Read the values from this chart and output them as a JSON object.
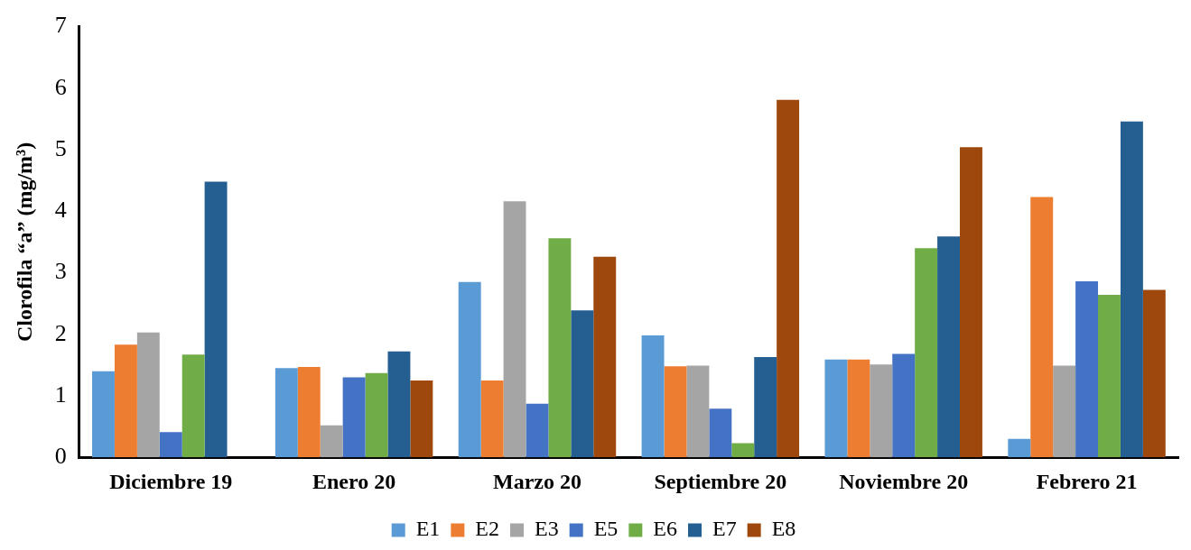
{
  "chart_data": {
    "type": "bar",
    "ylabel": "Clorofila “a” (mg/m³)",
    "categories": [
      "Diciembre 19",
      "Enero 20",
      "Marzo 20",
      "Septiembre 20",
      "Noviembre 20",
      "Febrero 21"
    ],
    "series": [
      {
        "name": "E1",
        "color": "#5b9bd5",
        "values": [
          1.4,
          1.45,
          2.85,
          1.98,
          1.59,
          0.3
        ]
      },
      {
        "name": "E2",
        "color": "#ed7d31",
        "values": [
          1.83,
          1.47,
          1.25,
          1.48,
          1.59,
          4.23
        ]
      },
      {
        "name": "E3",
        "color": "#a5a5a5",
        "values": [
          2.03,
          0.52,
          4.16,
          1.49,
          1.51,
          1.49
        ]
      },
      {
        "name": "E5",
        "color": "#4472c4",
        "values": [
          0.41,
          1.3,
          0.87,
          0.79,
          1.68,
          2.86
        ]
      },
      {
        "name": "E6",
        "color": "#70ad47",
        "values": [
          1.67,
          1.37,
          3.56,
          0.23,
          3.4,
          2.64
        ]
      },
      {
        "name": "E7",
        "color": "#255e91",
        "values": [
          4.48,
          1.72,
          2.39,
          1.63,
          3.59,
          5.46
        ]
      },
      {
        "name": "E8",
        "color": "#9e480e",
        "values": [
          null,
          1.25,
          3.26,
          5.81,
          5.04,
          2.72
        ]
      }
    ],
    "ylim": [
      0,
      7
    ],
    "yticks": [
      0,
      1,
      2,
      3,
      4,
      5,
      6,
      7
    ],
    "grid": false,
    "legend": "bottom"
  }
}
